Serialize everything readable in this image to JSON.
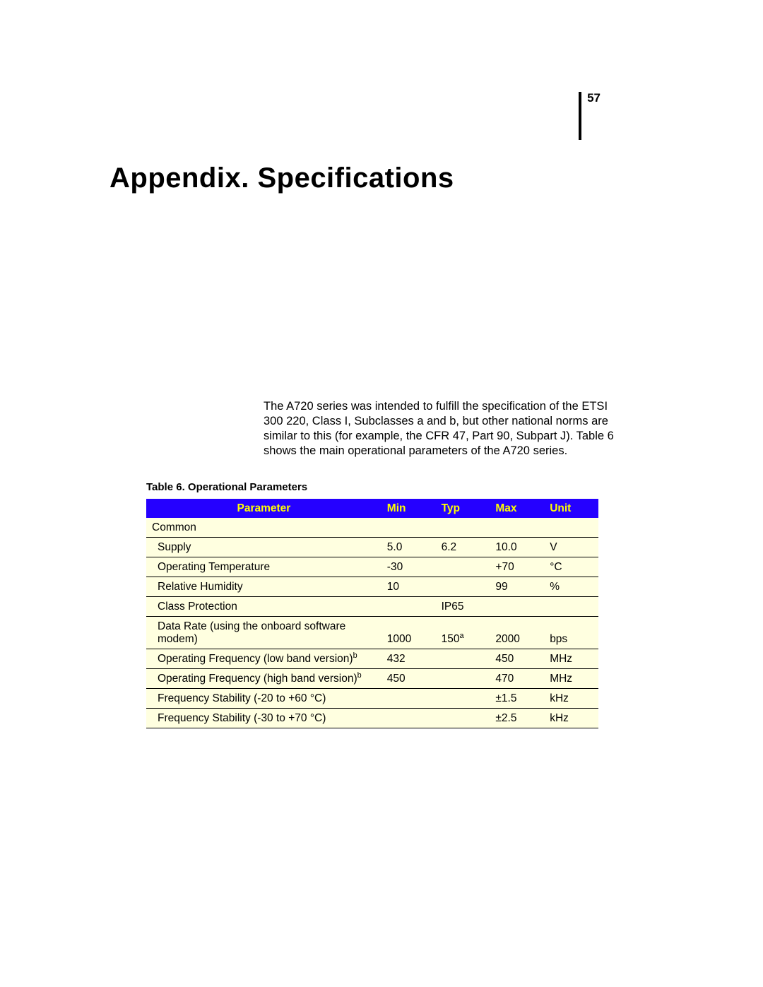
{
  "page_number": "57",
  "title": "Appendix.  Specifications",
  "intro_text": "The A720 series was intended to fulfill the specification of the ETSI 300 220, Class I, Subclasses a and b, but other national norms are similar to this (for example, the CFR 47, Part 90, Subpart J). Table 6 shows the main operational parameters of the A720 series.",
  "table": {
    "caption": "Table 6.  Operational Parameters",
    "header": {
      "parameter": "Parameter",
      "min": "Min",
      "typ": "Typ",
      "max": "Max",
      "unit": "Unit"
    },
    "header_bg": "#2500ff",
    "header_fg": "#ffff00",
    "row_bg": "#ffffe0",
    "border_color": "#000000",
    "columns": [
      "Parameter",
      "Min",
      "Typ",
      "Max",
      "Unit"
    ],
    "col_widths_pct": [
      52,
      12,
      12,
      12,
      12
    ],
    "rows": [
      {
        "section": true,
        "parameter": "Common",
        "min": "",
        "typ": "",
        "max": "",
        "unit": ""
      },
      {
        "parameter": "Supply",
        "min": "5.0",
        "typ": "6.2",
        "max": "10.0",
        "unit": "V"
      },
      {
        "parameter": "Operating Temperature",
        "min": "-30",
        "typ": "",
        "max": "+70",
        "unit": "°C"
      },
      {
        "parameter": "Relative Humidity",
        "min": "10",
        "typ": "",
        "max": "99",
        "unit": "%"
      },
      {
        "parameter": "Class Protection",
        "min": "",
        "typ": "IP65",
        "max": "",
        "unit": ""
      },
      {
        "parameter": "Data Rate (using the onboard software modem)",
        "min": "1000",
        "typ": "150",
        "typ_sup": "a",
        "max": "2000",
        "unit": "bps"
      },
      {
        "parameter": "Operating Frequency (low band version)",
        "param_sup": "b",
        "min": "432",
        "typ": "",
        "max": "450",
        "unit": "MHz"
      },
      {
        "parameter": "Operating Frequency (high band version)",
        "param_sup": "b",
        "min": "450",
        "typ": "",
        "max": "470",
        "unit": "MHz"
      },
      {
        "parameter": "Frequency Stability (-20 to +60 °C)",
        "min": "",
        "typ": "",
        "max": "±1.5",
        "unit": "kHz"
      },
      {
        "parameter": "Frequency Stability (-30 to +70 °C)",
        "min": "",
        "typ": "",
        "max": "±2.5",
        "unit": "kHz"
      }
    ]
  }
}
